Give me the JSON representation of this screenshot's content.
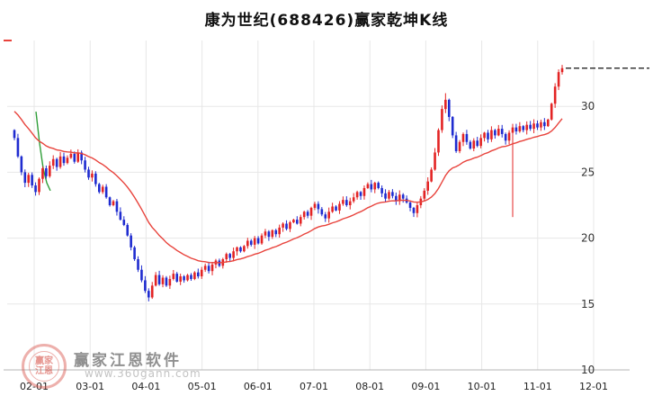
{
  "title": "康为世纪(688426)赢家乾坤K线",
  "watermark": {
    "brand": "赢家江恩软件",
    "url": "www.360gann.com",
    "logo_line1": "赢家",
    "logo_line2": "江恩"
  },
  "axes": {
    "y_ticks": [
      30,
      25,
      20,
      15,
      10
    ],
    "x_ticks": [
      "02-01",
      "03-01",
      "04-01",
      "05-01",
      "06-01",
      "07-01",
      "08-01",
      "09-01",
      "10-01",
      "11-01",
      "12-01"
    ]
  },
  "colors": {
    "up": "#e32424",
    "down": "#1f2cd0",
    "ma": "#e8433c",
    "green_ma": "#2f9e38",
    "grid": "#e7e7e7",
    "axis": "#b5b5b5",
    "tick_text": "#333333",
    "ref_line": "#111111"
  },
  "chart_data": {
    "type": "candlestick",
    "name": "康为世纪",
    "symbol": "688426",
    "title": "康为世纪(688426)赢家乾坤K线",
    "x_range": [
      "02-01",
      "12-01"
    ],
    "ylim": [
      10,
      35
    ],
    "grid": true,
    "open_start": 28.2,
    "closes": [
      27.6,
      26.2,
      25.0,
      24.2,
      24.8,
      24.0,
      23.5,
      24.5,
      25.3,
      24.7,
      25.5,
      26.0,
      25.4,
      26.2,
      25.7,
      26.1,
      26.4,
      25.8,
      26.5,
      25.9,
      25.2,
      24.6,
      24.9,
      24.1,
      23.5,
      23.9,
      23.1,
      22.5,
      22.8,
      22.0,
      21.4,
      21.0,
      20.2,
      19.3,
      18.4,
      17.6,
      16.8,
      16.0,
      15.5,
      16.4,
      17.2,
      16.5,
      17.0,
      16.4,
      16.9,
      17.3,
      16.7,
      17.1,
      16.8,
      17.2,
      16.9,
      17.4,
      17.1,
      17.6,
      17.9,
      17.5,
      18.0,
      18.3,
      17.9,
      18.4,
      18.8,
      18.5,
      19.0,
      19.3,
      19.0,
      19.4,
      19.8,
      19.5,
      20.0,
      19.6,
      20.2,
      20.5,
      20.1,
      20.6,
      20.3,
      20.8,
      21.1,
      20.7,
      21.2,
      21.4,
      21.1,
      21.6,
      22.0,
      21.7,
      22.3,
      22.6,
      22.2,
      21.8,
      21.5,
      22.0,
      22.4,
      22.1,
      22.6,
      22.9,
      22.5,
      22.8,
      23.1,
      23.5,
      23.2,
      23.8,
      24.1,
      23.7,
      24.2,
      23.8,
      23.4,
      23.0,
      23.5,
      23.2,
      22.8,
      23.3,
      23.0,
      22.7,
      22.3,
      21.9,
      22.5,
      23.0,
      23.6,
      24.3,
      25.2,
      26.5,
      28.2,
      29.8,
      30.5,
      29.2,
      27.8,
      26.6,
      27.3,
      27.9,
      27.3,
      26.8,
      27.4,
      27.0,
      27.6,
      28.0,
      27.5,
      28.2,
      27.8,
      28.3,
      27.9,
      27.4,
      28.0,
      28.4,
      28.1,
      28.5,
      28.2,
      28.6,
      28.3,
      28.7,
      28.4,
      28.8,
      28.5,
      29.0,
      30.2,
      31.5,
      32.6,
      32.9
    ],
    "wick_overrides": {
      "38": {
        "low": 15.2
      },
      "122": {
        "high": 31.0
      },
      "141": {
        "low": 21.6
      },
      "155": {
        "high": 33.15
      }
    },
    "ma": {
      "type": "ema",
      "seed": 29.8,
      "alpha": 0.08
    },
    "green_segment": {
      "xs": [
        40,
        44,
        48,
        52,
        56
      ],
      "values": [
        29.6,
        27.2,
        25.3,
        24.2,
        23.6
      ]
    },
    "ref_price": 32.9
  }
}
